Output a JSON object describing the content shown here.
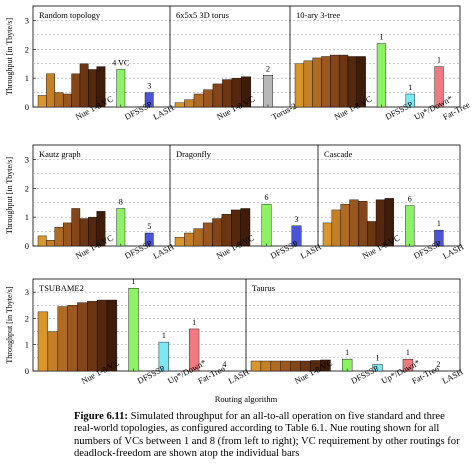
{
  "figure_label": "Figure 6.11:",
  "caption_text": "Simulated throughput for an all-to-all operation on five standard and three real-world topologies, as configured according to Table 6.1. Nue routing shown for all numbers of VCs between 1 and 8 (from left to right); VC requirement by other routings for deadlock-freedom are shown atop the individual bars",
  "colors": {
    "nue": [
      "#d9962a",
      "#c57f26",
      "#b06b22",
      "#9a571e",
      "#844618",
      "#6c3612",
      "#55280d",
      "#3f1c09"
    ],
    "DFSSSP": "#8ef265",
    "LASH": "#4a54d6",
    "Torus-2QoS": "#b8b8b8",
    "Up*/Down*": "#7de8f5",
    "Fat-Tree": "#f07a80"
  },
  "chart_data": [
    {
      "type": "bar",
      "title": "Random topology",
      "ylabel": "Throughput [in Tbyte/s]",
      "ylim": [
        0,
        3.5
      ],
      "grid": true,
      "tick_labels": [
        "Nue 1-8 VC",
        "DFSSSP",
        "LASH"
      ],
      "series": [
        {
          "name": "Nue 1-8 VC",
          "values": [
            0.4,
            1.15,
            0.5,
            0.45,
            1.15,
            1.5,
            1.3,
            1.4
          ]
        },
        {
          "name": "DFSSSP",
          "values": [
            1.3
          ],
          "annotation": "4 VC"
        },
        {
          "name": "LASH",
          "values": [
            0.5
          ],
          "annotation": "3"
        }
      ]
    },
    {
      "type": "bar",
      "title": "6x5x5 3D torus",
      "ylim": [
        0,
        3.5
      ],
      "grid": true,
      "tick_labels": [
        "Nue 1-8 VC",
        "Torus-2QoS"
      ],
      "series": [
        {
          "name": "Nue 1-8 VC",
          "values": [
            0.15,
            0.25,
            0.45,
            0.6,
            0.8,
            0.95,
            1.0,
            1.05
          ]
        },
        {
          "name": "Torus-2QoS",
          "values": [
            1.1
          ],
          "annotation": "2"
        }
      ]
    },
    {
      "type": "bar",
      "title": "10-ary 3-tree",
      "ylim": [
        0,
        3.5
      ],
      "grid": true,
      "tick_labels": [
        "Nue 1-8 VC",
        "DFSSSP",
        "Up*/Down*",
        "Fat-Tree"
      ],
      "series": [
        {
          "name": "Nue 1-8 VC",
          "values": [
            1.5,
            1.6,
            1.7,
            1.75,
            1.8,
            1.8,
            1.75,
            1.75
          ]
        },
        {
          "name": "DFSSSP",
          "values": [
            2.2
          ],
          "annotation": "1"
        },
        {
          "name": "Up*/Down*",
          "values": [
            0.45
          ],
          "annotation": "1"
        },
        {
          "name": "Fat-Tree",
          "values": [
            1.4
          ],
          "annotation": "1"
        }
      ]
    },
    {
      "type": "bar",
      "title": "Kautz graph",
      "ylabel": "Throughput [in Tbyte/s]",
      "ylim": [
        0,
        3.5
      ],
      "grid": true,
      "tick_labels": [
        "Nue 1-8 VC",
        "DFSSSP",
        "LASH"
      ],
      "series": [
        {
          "name": "Nue 1-8 VC",
          "values": [
            0.35,
            0.2,
            0.65,
            0.8,
            1.3,
            0.95,
            1.0,
            1.2
          ]
        },
        {
          "name": "DFSSSP",
          "values": [
            1.3
          ],
          "annotation": "8"
        },
        {
          "name": "LASH",
          "values": [
            0.45
          ],
          "annotation": "5"
        }
      ]
    },
    {
      "type": "bar",
      "title": "Dragonfly",
      "ylim": [
        0,
        3.5
      ],
      "grid": true,
      "tick_labels": [
        "Nue 1-8 VC",
        "DFSSSP",
        "LASH"
      ],
      "series": [
        {
          "name": "Nue 1-8 VC",
          "values": [
            0.3,
            0.45,
            0.6,
            0.8,
            0.95,
            1.1,
            1.25,
            1.3
          ]
        },
        {
          "name": "DFSSSP",
          "values": [
            1.45
          ],
          "annotation": "6"
        },
        {
          "name": "LASH",
          "values": [
            0.7
          ],
          "annotation": "3"
        }
      ]
    },
    {
      "type": "bar",
      "title": "Cascade",
      "ylim": [
        0,
        3.5
      ],
      "grid": true,
      "tick_labels": [
        "Nue 1-8 VC",
        "DFSSSP",
        "LASH"
      ],
      "series": [
        {
          "name": "Nue 1-8 VC",
          "values": [
            0.8,
            1.25,
            1.45,
            1.6,
            1.55,
            0.85,
            1.6,
            1.65
          ]
        },
        {
          "name": "DFSSSP",
          "values": [
            1.4
          ],
          "annotation": "6"
        },
        {
          "name": "LASH",
          "values": [
            0.55
          ],
          "annotation": "1"
        }
      ]
    },
    {
      "type": "bar",
      "title": "TSUBAME2",
      "ylabel": "Throughput [in Tbyte/s]",
      "ylim": [
        0,
        3.5
      ],
      "yticks": [
        0,
        1,
        2,
        3
      ],
      "grid": true,
      "xlabel": "Routing algorithm",
      "tick_labels": [
        "Nue 1-8 VC",
        "DFSSSP",
        "Up*/Down*",
        "Fat-Tree",
        "LASH"
      ],
      "series": [
        {
          "name": "Nue 1-8 VC",
          "values": [
            2.25,
            1.5,
            2.45,
            2.5,
            2.6,
            2.65,
            2.7,
            2.7
          ]
        },
        {
          "name": "DFSSSP",
          "values": [
            3.15
          ],
          "annotation": "1"
        },
        {
          "name": "Up*/Down*",
          "values": [
            1.1
          ],
          "annotation": "1"
        },
        {
          "name": "Fat-Tree",
          "values": [
            1.6
          ],
          "annotation": "1"
        },
        {
          "name": "LASH",
          "values": [
            0
          ],
          "annotation": "4"
        }
      ]
    },
    {
      "type": "bar",
      "title": "Taurus",
      "ylim": [
        0,
        3.5
      ],
      "grid": true,
      "tick_labels": [
        "Nue 1-8 VC",
        "DFSSSP",
        "Up*/Down*",
        "Fat-Tree",
        "LASH"
      ],
      "series": [
        {
          "name": "Nue 1-8 VC",
          "values": [
            0.38,
            0.38,
            0.38,
            0.38,
            0.38,
            0.38,
            0.4,
            0.42
          ]
        },
        {
          "name": "DFSSSP",
          "values": [
            0.45
          ],
          "annotation": "1"
        },
        {
          "name": "Up*/Down*",
          "values": [
            0.25
          ],
          "annotation": "1"
        },
        {
          "name": "Fat-Tree",
          "values": [
            0.45
          ],
          "annotation": "1"
        },
        {
          "name": "LASH",
          "values": [
            0
          ],
          "annotation": "2"
        }
      ]
    }
  ]
}
